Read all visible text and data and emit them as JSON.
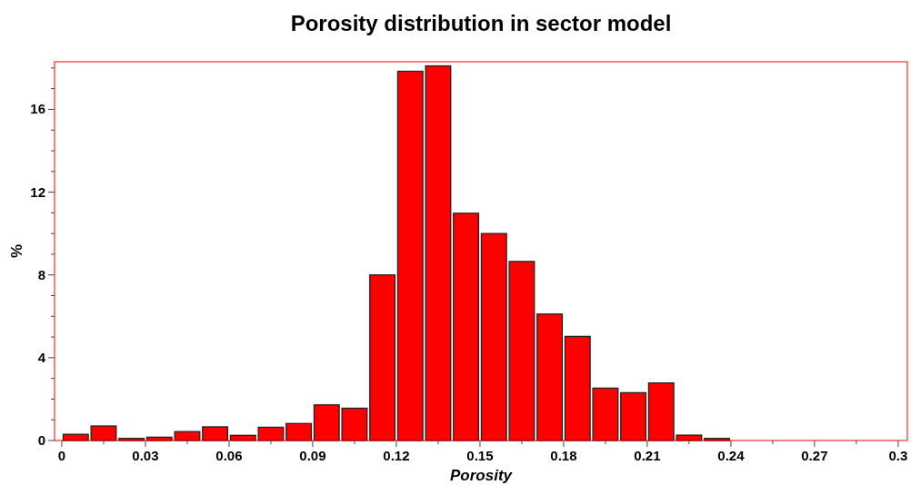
{
  "chart_data": {
    "type": "histogram",
    "title": "Porosity distribution in sector model",
    "xlabel": "Porosity",
    "ylabel": "%",
    "bins": [
      0,
      0.01,
      0.02,
      0.03,
      0.04,
      0.05,
      0.06,
      0.07,
      0.08,
      0.09,
      0.1,
      0.11,
      0.12,
      0.13,
      0.14,
      0.15,
      0.16,
      0.17,
      0.18,
      0.19,
      0.2,
      0.21,
      0.22,
      0.23,
      0.24
    ],
    "values": [
      0.3,
      0.7,
      0.1,
      0.16,
      0.43,
      0.66,
      0.25,
      0.64,
      0.82,
      1.72,
      1.56,
      8.0,
      17.84,
      18.1,
      10.98,
      10.0,
      8.65,
      6.11,
      5.03,
      2.53,
      2.31,
      2.78,
      0.26,
      0.1
    ],
    "color": "#ff0000",
    "xlim": [
      -0.0026,
      0.3033
    ],
    "xticks": [
      0,
      {
        "value": 0.015,
        "label": null
      },
      0.03,
      {
        "value": 0.045,
        "label": null
      },
      0.06,
      {
        "value": 0.075,
        "label": null
      },
      0.09,
      {
        "value": 0.105,
        "label": null
      },
      0.12,
      {
        "value": 0.135,
        "label": null
      },
      0.15,
      {
        "value": 0.165,
        "label": null
      },
      0.18,
      {
        "value": 0.195,
        "label": null
      },
      0.21,
      {
        "value": 0.225,
        "label": null
      },
      0.24,
      {
        "value": 0.255,
        "label": null
      },
      0.27,
      {
        "value": 0.285,
        "label": null
      },
      0.3
    ],
    "ylim": [
      0,
      18.3
    ],
    "yticks": [
      0,
      {
        "value": 1,
        "label": null
      },
      {
        "value": 2,
        "label": null
      },
      {
        "value": 3,
        "label": null
      },
      4,
      {
        "value": 5,
        "label": null
      },
      {
        "value": 6,
        "label": null
      },
      {
        "value": 7,
        "label": null
      },
      8,
      {
        "value": 9,
        "label": null
      },
      {
        "value": 10,
        "label": null
      },
      {
        "value": 11,
        "label": null
      },
      12,
      {
        "value": 13,
        "label": null
      },
      {
        "value": 14,
        "label": null
      },
      {
        "value": 15,
        "label": null
      },
      16,
      {
        "value": 17,
        "label": null
      },
      {
        "value": 18,
        "label": null
      }
    ],
    "grid": false
  }
}
